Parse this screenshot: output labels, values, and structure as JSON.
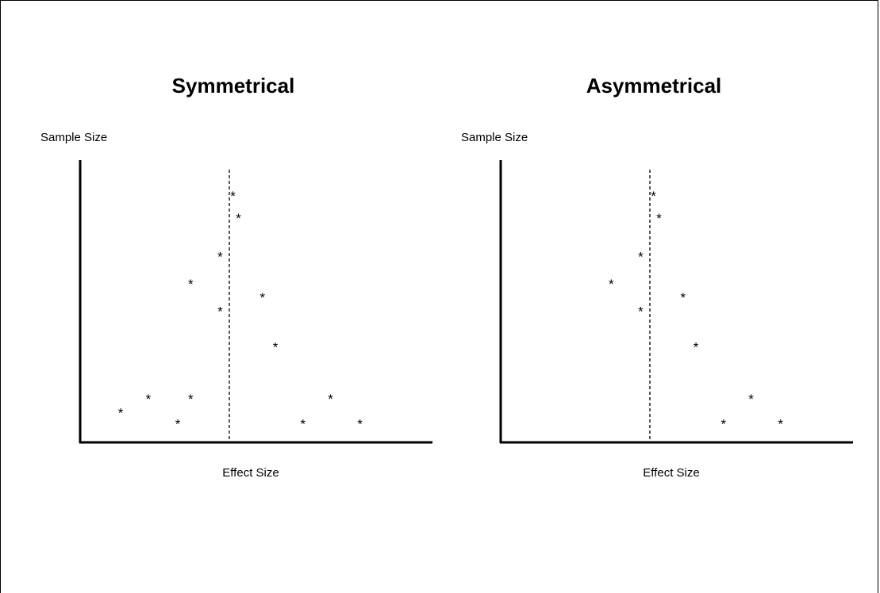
{
  "chart_data": [
    {
      "type": "scatter",
      "title": "Symmetrical",
      "xlabel": "Effect Size",
      "ylabel": "Sample Size",
      "marker": "*",
      "reference_line": {
        "x": 0,
        "style": "dashed"
      },
      "xlim": [
        -1,
        1
      ],
      "ylim": [
        0,
        1
      ],
      "points": [
        {
          "x": 0.02,
          "y": 0.91
        },
        {
          "x": 0.05,
          "y": 0.83
        },
        {
          "x": -0.05,
          "y": 0.69
        },
        {
          "x": -0.21,
          "y": 0.59
        },
        {
          "x": -0.05,
          "y": 0.49
        },
        {
          "x": 0.18,
          "y": 0.54
        },
        {
          "x": 0.25,
          "y": 0.36
        },
        {
          "x": -0.59,
          "y": 0.12
        },
        {
          "x": -0.44,
          "y": 0.17
        },
        {
          "x": -0.21,
          "y": 0.17
        },
        {
          "x": -0.28,
          "y": 0.08
        },
        {
          "x": 0.4,
          "y": 0.08
        },
        {
          "x": 0.55,
          "y": 0.17
        },
        {
          "x": 0.71,
          "y": 0.08
        }
      ]
    },
    {
      "type": "scatter",
      "title": "Asymmetrical",
      "xlabel": "Effect Size",
      "ylabel": "Sample Size",
      "marker": "*",
      "reference_line": {
        "x": 0,
        "style": "dashed"
      },
      "xlim": [
        -1,
        1
      ],
      "ylim": [
        0,
        1
      ],
      "points": [
        {
          "x": 0.02,
          "y": 0.91
        },
        {
          "x": 0.05,
          "y": 0.83
        },
        {
          "x": -0.05,
          "y": 0.69
        },
        {
          "x": -0.21,
          "y": 0.59
        },
        {
          "x": -0.05,
          "y": 0.49
        },
        {
          "x": 0.18,
          "y": 0.54
        },
        {
          "x": 0.25,
          "y": 0.36
        },
        {
          "x": 0.4,
          "y": 0.08
        },
        {
          "x": 0.55,
          "y": 0.17
        },
        {
          "x": 0.71,
          "y": 0.08
        }
      ]
    }
  ]
}
